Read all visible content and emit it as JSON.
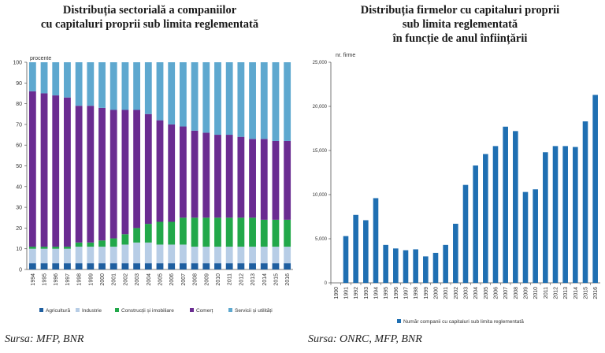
{
  "left_title": {
    "line1": "Distribuția sectorială a companiilor",
    "line2": "cu capitaluri proprii sub limita reglementată"
  },
  "right_title": {
    "line1": "Distribuția firmelor cu capitaluri proprii",
    "line2": "sub limita reglementată",
    "line3": "în funcție de anul înființării"
  },
  "left_source": "Sursa: MFP, BNR",
  "right_source": "Sursa: ONRC, MFP, BNR",
  "chart_data": [
    {
      "type": "bar",
      "stacked": true,
      "unit_label": "procente",
      "ylim": [
        0,
        100
      ],
      "yticks": [
        0,
        10,
        20,
        30,
        40,
        50,
        60,
        70,
        80,
        90,
        100
      ],
      "grid": false,
      "legend_position": "bottom",
      "categories": [
        "1994",
        "1995",
        "1996",
        "1997",
        "1998",
        "1999",
        "2000",
        "2001",
        "2002",
        "2003",
        "2004",
        "2005",
        "2006",
        "2007",
        "2008",
        "2009",
        "2010",
        "2011",
        "2012",
        "2013",
        "2014",
        "2015",
        "2016"
      ],
      "series": [
        {
          "name": "Agricultură",
          "color": "#1f5fa0",
          "values": [
            3,
            3,
            3,
            3,
            3,
            3,
            3,
            3,
            3,
            3,
            3,
            3,
            3,
            3,
            3,
            3,
            3,
            3,
            3,
            3,
            3,
            3,
            3
          ]
        },
        {
          "name": "Industrie",
          "color": "#b7cde6",
          "values": [
            7,
            7,
            7,
            7,
            8,
            8,
            8,
            8,
            9,
            10,
            10,
            9,
            9,
            9,
            8,
            8,
            8,
            8,
            8,
            8,
            8,
            8,
            8
          ]
        },
        {
          "name": "Construcții și imobiliare",
          "color": "#22a84a",
          "values": [
            1,
            1,
            1,
            1,
            2,
            2,
            3,
            4,
            5,
            7,
            9,
            11,
            11,
            13,
            14,
            14,
            14,
            14,
            14,
            14,
            13,
            13,
            13
          ]
        },
        {
          "name": "Comerț",
          "color": "#6a2c91",
          "values": [
            75,
            74,
            73,
            72,
            66,
            66,
            64,
            62,
            60,
            57,
            53,
            49,
            47,
            44,
            42,
            41,
            40,
            40,
            39,
            38,
            39,
            38,
            38
          ]
        },
        {
          "name": "Servicii și utilități",
          "color": "#5ea8cf",
          "values": [
            14,
            15,
            16,
            17,
            21,
            21,
            22,
            23,
            23,
            23,
            25,
            28,
            30,
            31,
            33,
            34,
            35,
            35,
            36,
            37,
            37,
            38,
            38
          ]
        }
      ]
    },
    {
      "type": "bar",
      "unit_label": "nr. firme",
      "ylim": [
        0,
        25000
      ],
      "yticks": [
        "0",
        "5,000",
        "10,000",
        "15,000",
        "20,000",
        "25,000"
      ],
      "ytick_values": [
        0,
        5000,
        10000,
        15000,
        20000,
        25000
      ],
      "grid": false,
      "legend_position": "bottom",
      "categories": [
        "1990",
        "1991",
        "1992",
        "1993",
        "1994",
        "1995",
        "1996",
        "1997",
        "1998",
        "1999",
        "2000",
        "2001",
        "2002",
        "2003",
        "2004",
        "2005",
        "2006",
        "2007",
        "2008",
        "2009",
        "2010",
        "2011",
        "2012",
        "2013",
        "2014",
        "2015",
        "2016"
      ],
      "series": [
        {
          "name": "Număr companii cu capitaluri sub limita reglementată",
          "color": "#1f6fb2",
          "values": [
            0,
            5300,
            7700,
            7100,
            9600,
            4300,
            3900,
            3700,
            3800,
            3000,
            3400,
            4300,
            6700,
            11100,
            13300,
            14600,
            15500,
            17700,
            17200,
            10300,
            10600,
            14800,
            15500,
            15500,
            15400,
            18300,
            21300
          ]
        }
      ]
    }
  ]
}
